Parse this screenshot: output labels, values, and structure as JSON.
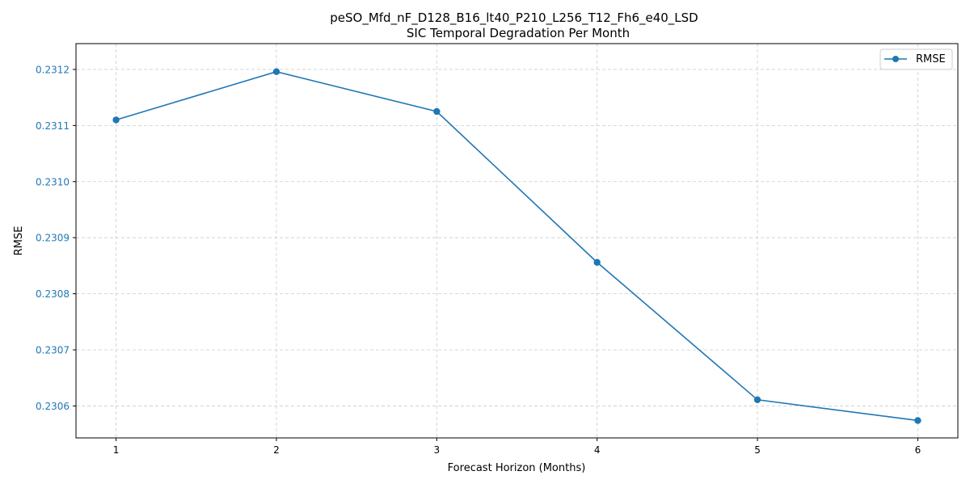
{
  "chart_data": {
    "type": "line",
    "title": "peSO_Mfd_nF_D128_B16_lt40_P210_L256_T12_Fh6_e40_LSD",
    "subtitle": "SIC Temporal Degradation Per Month",
    "xlabel": "Forecast Horizon (Months)",
    "ylabel": "RMSE",
    "x": [
      1,
      2,
      3,
      4,
      5,
      6
    ],
    "x_ticks": [
      1,
      2,
      3,
      4,
      5,
      6
    ],
    "x_tick_labels": [
      "1",
      "2",
      "3",
      "4",
      "5",
      "6"
    ],
    "xlim": [
      0.75,
      6.25
    ],
    "ylim": [
      0.230543,
      0.231246
    ],
    "y_ticks": [
      0.2306,
      0.2307,
      0.2308,
      0.2309,
      0.231,
      0.2311,
      0.2312
    ],
    "y_tick_labels": [
      "0.2306",
      "0.2307",
      "0.2308",
      "0.2309",
      "0.2310",
      "0.2311",
      "0.2312"
    ],
    "y_tick_label_color": "#1f77b4",
    "grid": true,
    "legend": "top-right",
    "series": [
      {
        "name": "RMSE",
        "color": "#1f77b4",
        "marker": "circle",
        "values": [
          0.23111,
          0.231196,
          0.231125,
          0.230856,
          0.230611,
          0.230574
        ]
      }
    ]
  }
}
